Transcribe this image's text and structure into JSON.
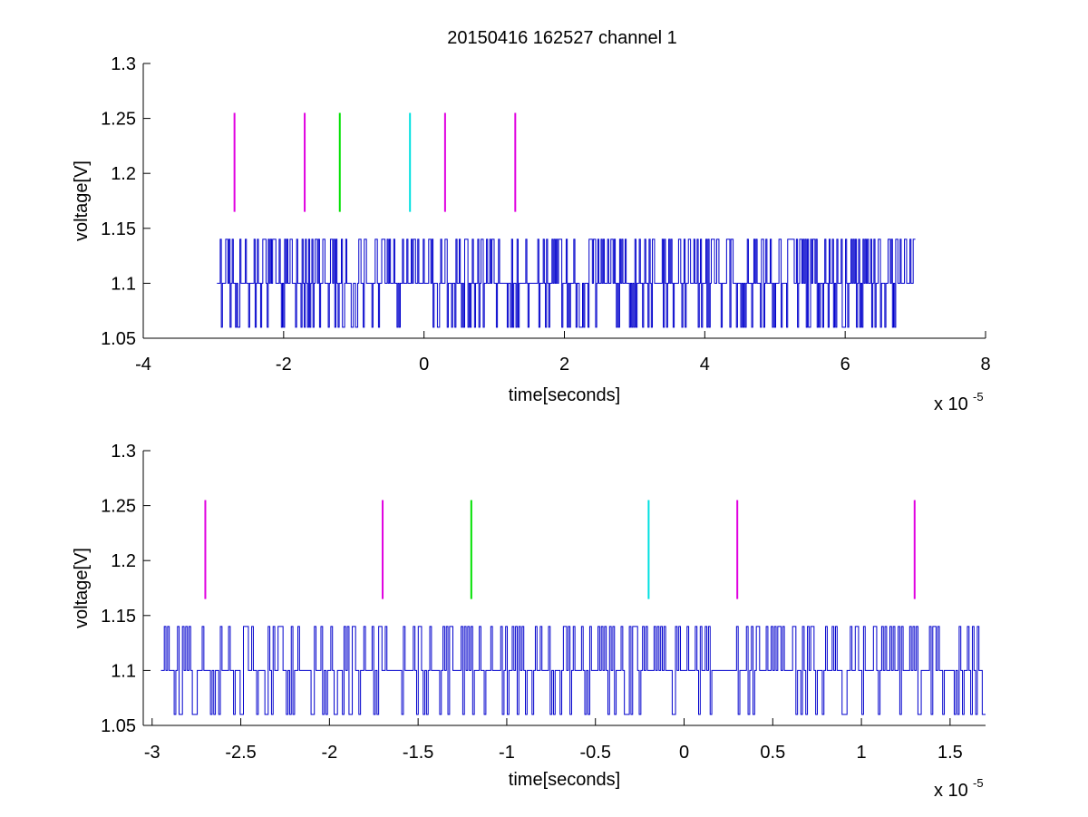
{
  "figure": {
    "title": "20150416 162527 channel 1"
  },
  "colors": {
    "trace": "#0000cc",
    "magenta": "#e000e0",
    "green": "#00e000",
    "cyan": "#00e0e0",
    "axis": "#000000"
  },
  "chart_data": [
    {
      "type": "line",
      "title": "20150416 162527 channel 1",
      "xlabel": "time[seconds]",
      "ylabel": "voltage[V]",
      "x_exponent_label": {
        "base": "x 10",
        "exponent": "-5"
      },
      "x_tick_scale": 1e-05,
      "xlim": [
        -4,
        8
      ],
      "ylim": [
        1.05,
        1.3
      ],
      "xticks": [
        -4,
        -2,
        0,
        2,
        4,
        6,
        8
      ],
      "xtick_labels": [
        "-4",
        "-2",
        "0",
        "2",
        "4",
        "6",
        "8"
      ],
      "yticks": [
        1.05,
        1.1,
        1.15,
        1.2,
        1.25,
        1.3
      ],
      "ytick_labels": [
        "1.05",
        "1.1",
        "1.15",
        "1.2",
        "1.25",
        "1.3"
      ],
      "grid": false,
      "legend": "none",
      "signal": {
        "x_start": -2.95,
        "x_end": 7.0,
        "levels": [
          1.06,
          1.1,
          1.14
        ],
        "baseline": 1.1,
        "n_samples": 640
      },
      "markers": [
        {
          "x": -2.7,
          "y0": 1.165,
          "y1": 1.255,
          "color": "#e000e0"
        },
        {
          "x": -1.7,
          "y0": 1.165,
          "y1": 1.255,
          "color": "#e000e0"
        },
        {
          "x": -1.2,
          "y0": 1.165,
          "y1": 1.255,
          "color": "#00e000"
        },
        {
          "x": -0.2,
          "y0": 1.165,
          "y1": 1.255,
          "color": "#00e0e0"
        },
        {
          "x": 0.3,
          "y0": 1.165,
          "y1": 1.255,
          "color": "#e000e0"
        },
        {
          "x": 1.3,
          "y0": 1.165,
          "y1": 1.255,
          "color": "#e000e0"
        }
      ]
    },
    {
      "type": "line",
      "title": "",
      "xlabel": "time[seconds]",
      "ylabel": "voltage[V]",
      "x_exponent_label": {
        "base": "x 10",
        "exponent": "-5"
      },
      "x_tick_scale": 1e-05,
      "xlim": [
        -3.05,
        1.7
      ],
      "ylim": [
        1.05,
        1.3
      ],
      "xticks": [
        -3,
        -2.5,
        -2,
        -1.5,
        -1,
        -0.5,
        0,
        0.5,
        1,
        1.5
      ],
      "xtick_labels": [
        "-3",
        "-2.5",
        "-2",
        "-1.5",
        "-1",
        "-0.5",
        "0",
        "0.5",
        "1",
        "1.5"
      ],
      "yticks": [
        1.05,
        1.1,
        1.15,
        1.2,
        1.25,
        1.3
      ],
      "ytick_labels": [
        "1.05",
        "1.1",
        "1.15",
        "1.2",
        "1.25",
        "1.3"
      ],
      "grid": false,
      "legend": "none",
      "signal": {
        "x_start": -2.95,
        "x_end": 1.7,
        "levels": [
          1.06,
          1.1,
          1.14
        ],
        "baseline": 1.1,
        "n_samples": 500
      },
      "markers": [
        {
          "x": -2.7,
          "y0": 1.165,
          "y1": 1.255,
          "color": "#e000e0"
        },
        {
          "x": -1.7,
          "y0": 1.165,
          "y1": 1.255,
          "color": "#e000e0"
        },
        {
          "x": -1.2,
          "y0": 1.165,
          "y1": 1.255,
          "color": "#00e000"
        },
        {
          "x": -0.2,
          "y0": 1.165,
          "y1": 1.255,
          "color": "#00e0e0"
        },
        {
          "x": 0.3,
          "y0": 1.165,
          "y1": 1.255,
          "color": "#e000e0"
        },
        {
          "x": 1.3,
          "y0": 1.165,
          "y1": 1.255,
          "color": "#e000e0"
        }
      ]
    }
  ]
}
